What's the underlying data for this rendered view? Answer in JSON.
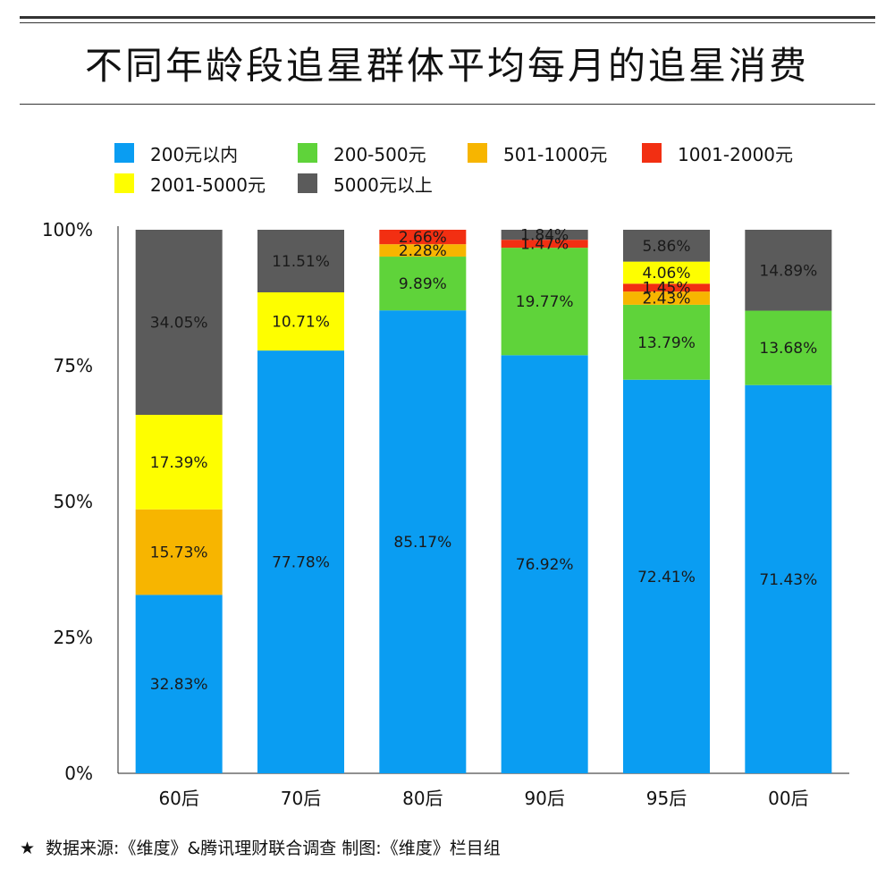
{
  "title": "不同年龄段追星群体平均每月的追星消费",
  "footer": {
    "star": "★",
    "text": "数据来源:《维度》&腾讯理财联合调查    制图:《维度》栏目组"
  },
  "chart_data": {
    "type": "bar",
    "stacked": true,
    "title": "不同年龄段追星群体平均每月的追星消费",
    "xlabel": "",
    "ylabel": "",
    "ylim": [
      0,
      100
    ],
    "y_ticks": [
      "0%",
      "25%",
      "50%",
      "75%",
      "100%"
    ],
    "y_tick_values": [
      0,
      25,
      50,
      75,
      100
    ],
    "legend_position": "top",
    "grid": false,
    "categories": [
      "60后",
      "70后",
      "80后",
      "90后",
      "95后",
      "00后"
    ],
    "series": [
      {
        "name": "200元以内",
        "color": "#0a9df2",
        "values": [
          32.83,
          77.78,
          85.17,
          76.92,
          72.41,
          71.43
        ],
        "labels": [
          "32.83%",
          "77.78%",
          "85.17%",
          "76.92%",
          "72.41%",
          "71.43%"
        ]
      },
      {
        "name": "200-500元",
        "color": "#5fd33a",
        "values": [
          0,
          0,
          9.89,
          19.77,
          13.79,
          13.68
        ],
        "labels": [
          "",
          "",
          "9.89%",
          "19.77%",
          "13.79%",
          "13.68%"
        ]
      },
      {
        "name": "501-1000元",
        "color": "#f7b500",
        "values": [
          15.73,
          0,
          2.28,
          0,
          2.43,
          0
        ],
        "labels": [
          "15.73%",
          "",
          "2.28%",
          "",
          "2.43%",
          ""
        ]
      },
      {
        "name": "1001-2000元",
        "color": "#f22f12",
        "values": [
          0,
          0,
          2.66,
          1.47,
          1.45,
          0
        ],
        "labels": [
          "",
          "",
          "2.66%",
          "1.47%",
          "1.45%",
          ""
        ]
      },
      {
        "name": "2001-5000元",
        "color": "#fefe00",
        "values": [
          17.39,
          10.71,
          0,
          0,
          4.06,
          0
        ],
        "labels": [
          "17.39%",
          "10.71%",
          "",
          "",
          "4.06%",
          ""
        ]
      },
      {
        "name": "5000元以上",
        "color": "#5b5b5b",
        "values": [
          34.05,
          11.51,
          0,
          1.84,
          5.86,
          14.89
        ],
        "labels": [
          "34.05%",
          "11.51%",
          "",
          "1.84%",
          "5.86%",
          "14.89%"
        ]
      }
    ]
  }
}
